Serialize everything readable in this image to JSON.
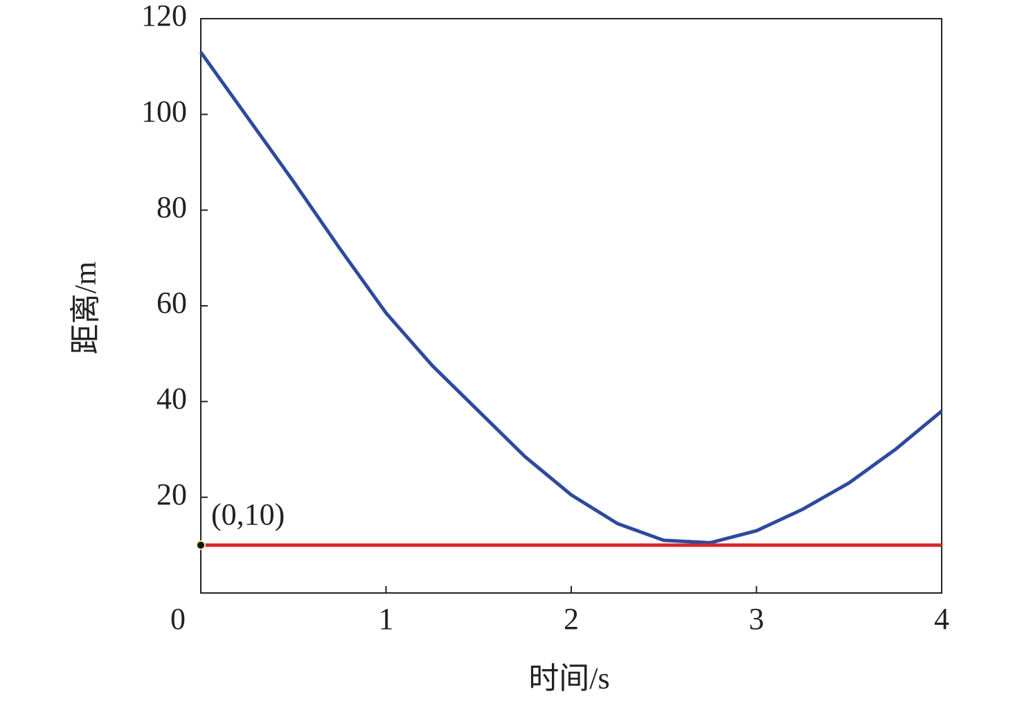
{
  "chart_data": {
    "type": "line",
    "x_label": "时间/s",
    "y_label": "距离/m",
    "xlim": [
      0,
      4
    ],
    "xticks": [
      0,
      1,
      2,
      3,
      4
    ],
    "ylim": [
      0,
      120
    ],
    "yticks": [
      20,
      40,
      60,
      80,
      100,
      120
    ],
    "series": [
      {
        "color": "#2e4a9e",
        "x": [
          0,
          0.25,
          0.5,
          0.75,
          1,
          1.25,
          1.5,
          1.75,
          2,
          2.25,
          2.5,
          2.75,
          3,
          3.25,
          3.5,
          3.75,
          4
        ],
        "values": [
          113,
          99.5,
          86,
          72,
          58.5,
          47.5,
          38,
          28.5,
          20.5,
          14.5,
          11,
          10.5,
          13,
          17.5,
          23,
          30,
          38
        ]
      },
      {
        "color": "#d7262e",
        "x": [
          0,
          4
        ],
        "values": [
          10,
          10
        ]
      }
    ],
    "annotation": {
      "text": "(0,10)",
      "x": 0,
      "y": 10
    }
  }
}
